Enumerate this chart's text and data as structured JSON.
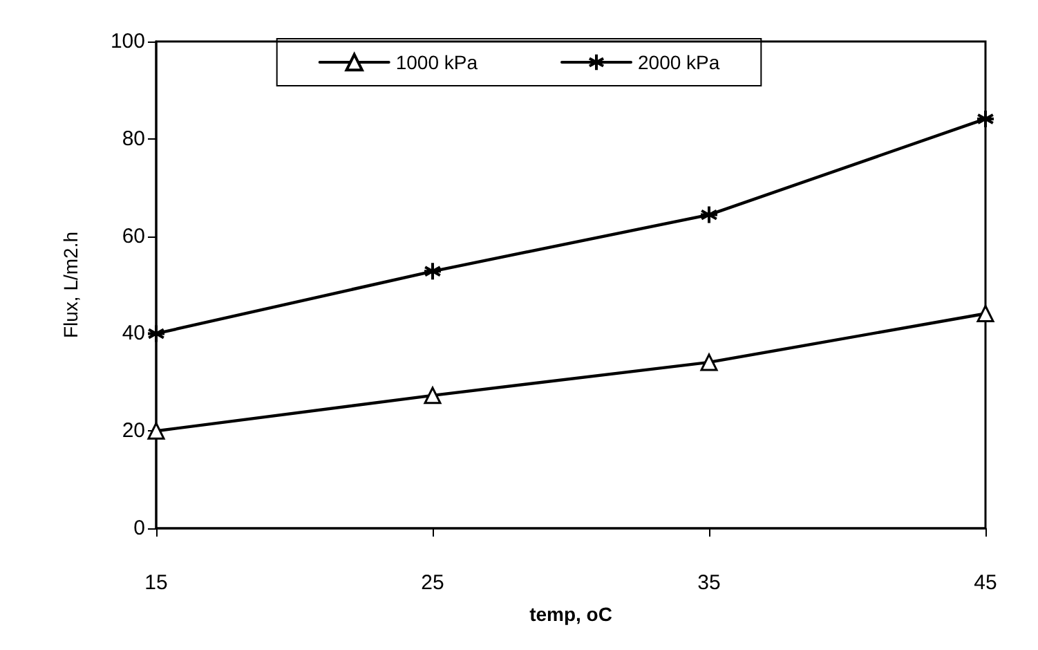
{
  "chart_data": {
    "type": "line",
    "xlabel": "temp, oC",
    "ylabel": "Flux, L/m2.h",
    "categories": [
      "15",
      "25",
      "35",
      "45"
    ],
    "series": [
      {
        "name": "1000 kPa",
        "color": "#000000",
        "marker": "triangle",
        "values": [
          20,
          27.3,
          34.1,
          44.1
        ]
      },
      {
        "name": "2000 kPa",
        "color": "#000000",
        "marker": "cross",
        "values": [
          40,
          52.8,
          64.4,
          84.1
        ]
      }
    ],
    "ylim": [
      0,
      100
    ],
    "yticks": [
      0,
      20,
      40,
      60,
      80,
      100
    ],
    "grid": false,
    "legend": "top",
    "line_style": "solid"
  }
}
